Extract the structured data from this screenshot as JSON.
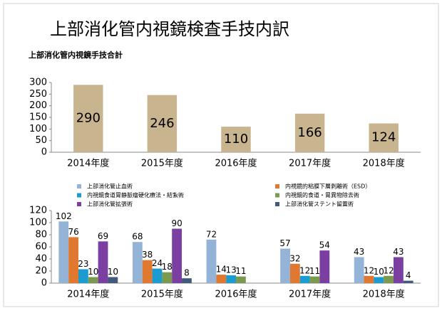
{
  "title": "上部消化管内視鏡検査手技内訳",
  "chart_data": [
    {
      "type": "bar",
      "title": "上部消化管内視鏡手技合計",
      "categories": [
        "2014年度",
        "2015年度",
        "2016年度",
        "2017年度",
        "2018年度"
      ],
      "values": [
        290,
        246,
        110,
        166,
        124
      ],
      "color": "#c8b48e",
      "ylim": [
        0,
        300
      ],
      "yticks": [
        0,
        50,
        100,
        150,
        200,
        250,
        300
      ]
    },
    {
      "type": "grouped-bar",
      "categories": [
        "2014年度",
        "2015年度",
        "2016年度",
        "2017年度",
        "2018年度"
      ],
      "series": [
        {
          "name": "上部消化管止血術",
          "color": "#93b3d7",
          "values": [
            102,
            68,
            72,
            57,
            43
          ]
        },
        {
          "name": "内視鏡的粘膜下層剥離術（ESD）",
          "color": "#e0782f",
          "values": [
            76,
            38,
            14,
            32,
            12
          ]
        },
        {
          "name": "内視鏡食道胃静脈瘤硬化療法・結紮術",
          "color": "#1b9bd0",
          "values": [
            23,
            24,
            13,
            12,
            10
          ]
        },
        {
          "name": "内視鏡的食道・胃異物除去術",
          "color": "#7b9a50",
          "values": [
            10,
            18,
            11,
            11,
            12
          ]
        },
        {
          "name": "上部消化管拡張術",
          "color": "#7a3fa0",
          "values": [
            69,
            90,
            null,
            54,
            43
          ]
        },
        {
          "name": "上部消化管ステント留置術",
          "color": "#41597a",
          "values": [
            10,
            8,
            null,
            null,
            4
          ]
        }
      ],
      "ylim": [
        0,
        120
      ],
      "yticks": [
        0,
        20,
        40,
        60,
        80,
        100,
        120
      ]
    }
  ]
}
